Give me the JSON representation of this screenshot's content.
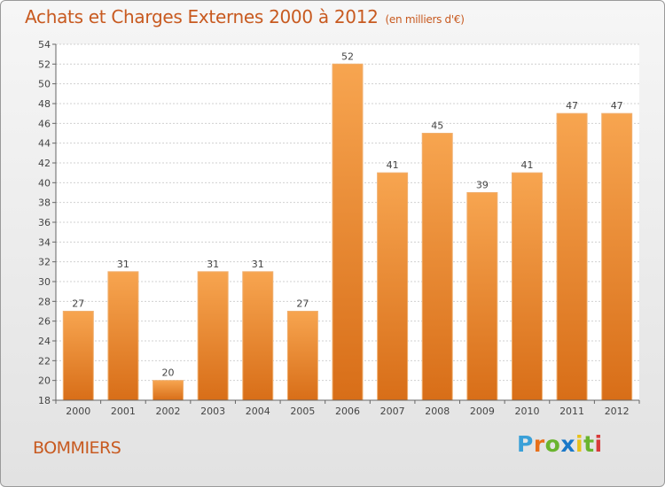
{
  "title": "Achats et Charges Externes 2000 à 2012",
  "subtitle": "(en milliers d'€)",
  "place": "BOMMIERS",
  "logo": {
    "letters": [
      "P",
      "r",
      "o",
      "x",
      "i",
      "t",
      "i"
    ],
    "colors": [
      "#3aa0d8",
      "#e8701a",
      "#6ab42e",
      "#1a78c8",
      "#e8c21a",
      "#6ab42e",
      "#d83a3a"
    ]
  },
  "colors": {
    "bar_top": "#f7a550",
    "bar_bottom": "#d86e18",
    "text": "#c85a20"
  },
  "chart_data": {
    "type": "bar",
    "categories": [
      "2000",
      "2001",
      "2002",
      "2003",
      "2004",
      "2005",
      "2006",
      "2007",
      "2008",
      "2009",
      "2010",
      "2011",
      "2012"
    ],
    "values": [
      27,
      31,
      20,
      31,
      31,
      27,
      52,
      41,
      45,
      39,
      41,
      47,
      47
    ],
    "ylim": [
      18,
      54
    ],
    "yticks": [
      18,
      20,
      22,
      24,
      26,
      28,
      30,
      32,
      34,
      36,
      38,
      40,
      42,
      44,
      46,
      48,
      50,
      52,
      54
    ],
    "grid": true,
    "legend": "none"
  }
}
